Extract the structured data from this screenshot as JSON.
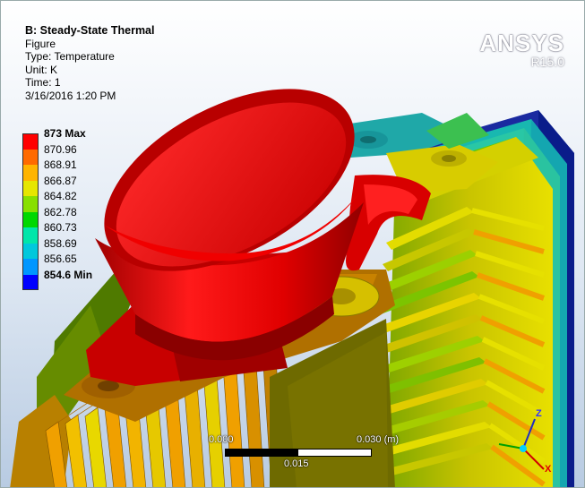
{
  "info": {
    "title": "B: Steady-State Thermal",
    "subtitle": "Figure",
    "type": "Type: Temperature",
    "unit": "Unit: K",
    "time": "Time: 1",
    "date": "3/16/2016 1:20 PM"
  },
  "legend": {
    "labels": [
      "873 Max",
      "870.96",
      "868.91",
      "866.87",
      "864.82",
      "862.78",
      "860.73",
      "858.69",
      "856.65",
      "854.6 Min"
    ],
    "colors": [
      "#ff0000",
      "#ff6a00",
      "#ffb400",
      "#e6e600",
      "#88e000",
      "#00d800",
      "#00e6aa",
      "#00c8dc",
      "#0096ff",
      "#0000ff"
    ]
  },
  "brand": {
    "name": "ANSYS",
    "version": "R15.0"
  },
  "scale_bar": {
    "left": "0.000",
    "right": "0.030 (m)",
    "middle": "0.015"
  },
  "triad": {
    "z": "Z",
    "x": "X"
  },
  "colors": {
    "red": "#e00000",
    "orange": "#f59a00",
    "yellow": "#e6e000",
    "green": "#7acc00",
    "teal": "#18b8b0",
    "blue": "#1a2aa0"
  }
}
